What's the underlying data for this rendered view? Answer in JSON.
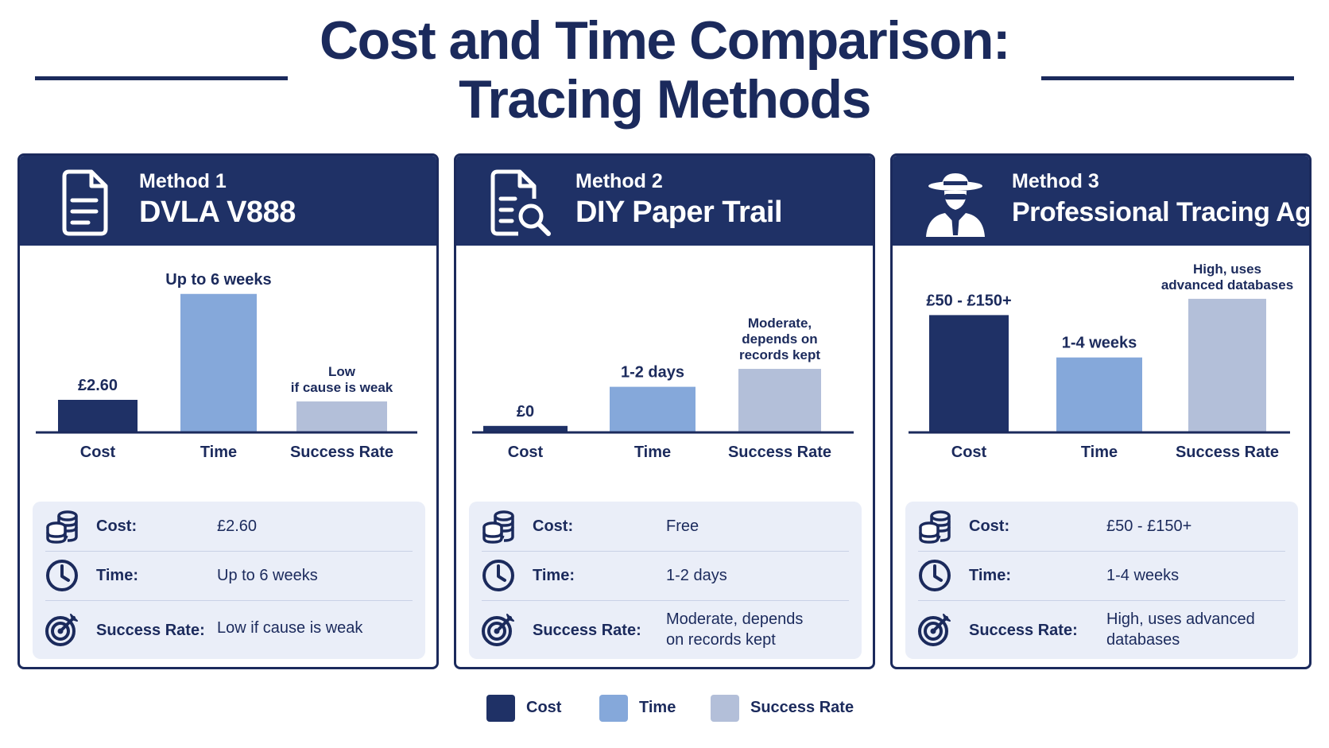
{
  "title": {
    "line1": "Cost and Time Comparison:",
    "line2": "Tracing Methods"
  },
  "colors": {
    "cost": "#1f3166",
    "time": "#85a8da",
    "success": "#b3bfd9",
    "header": "#1f3166",
    "text": "#1b2a5c",
    "info_bg": "#eaeef8"
  },
  "methods": [
    {
      "number": "Method 1",
      "name": "DVLA V888",
      "icon": "document-icon",
      "info": {
        "cost_label": "Cost:",
        "cost": "£2.60",
        "time_label": "Time:",
        "time": "Up to 6 weeks",
        "success_label": "Success Rate:",
        "success": "Low if cause is weak"
      }
    },
    {
      "number": "Method 2",
      "name": "DIY Paper Trail",
      "icon": "document-search-icon",
      "info": {
        "cost_label": "Cost:",
        "cost": "Free",
        "time_label": "Time:",
        "time": "1-2 days",
        "success_label": "Success Rate:",
        "success": "Moderate, depends on records kept"
      }
    },
    {
      "number": "Method 3",
      "name": "Professional Tracing Agent",
      "icon": "detective-icon",
      "info": {
        "cost_label": "Cost:",
        "cost": "£50 - £150+",
        "time_label": "Time:",
        "time": "1-4 weeks",
        "success_label": "Success Rate:",
        "success": "High, uses advanced databases"
      }
    }
  ],
  "chart_data": [
    {
      "type": "bar",
      "title": "DVLA V888",
      "categories": [
        "Cost",
        "Time",
        "Success Rate"
      ],
      "values": [
        20,
        85,
        19
      ],
      "ylim": [
        0,
        100
      ],
      "data_labels": [
        [
          "£2.60"
        ],
        [
          "Up to 6 weeks"
        ],
        [
          "Low",
          "if cause is weak"
        ]
      ]
    },
    {
      "type": "bar",
      "title": "DIY Paper Trail",
      "categories": [
        "Cost",
        "Time",
        "Success Rate"
      ],
      "values": [
        4,
        28,
        39
      ],
      "ylim": [
        0,
        100
      ],
      "data_labels": [
        [
          "£0"
        ],
        [
          "1-2 days"
        ],
        [
          "Moderate,",
          "depends on",
          "records kept"
        ]
      ]
    },
    {
      "type": "bar",
      "title": "Professional Tracing Agent",
      "categories": [
        "Cost",
        "Time",
        "Success Rate"
      ],
      "values": [
        72,
        46,
        82
      ],
      "ylim": [
        0,
        100
      ],
      "data_labels": [
        [
          "£50 - £150+"
        ],
        [
          "1-4 weeks"
        ],
        [
          "High, uses",
          "advanced databases"
        ]
      ]
    }
  ],
  "legend": [
    "Cost",
    "Time",
    "Success Rate"
  ]
}
